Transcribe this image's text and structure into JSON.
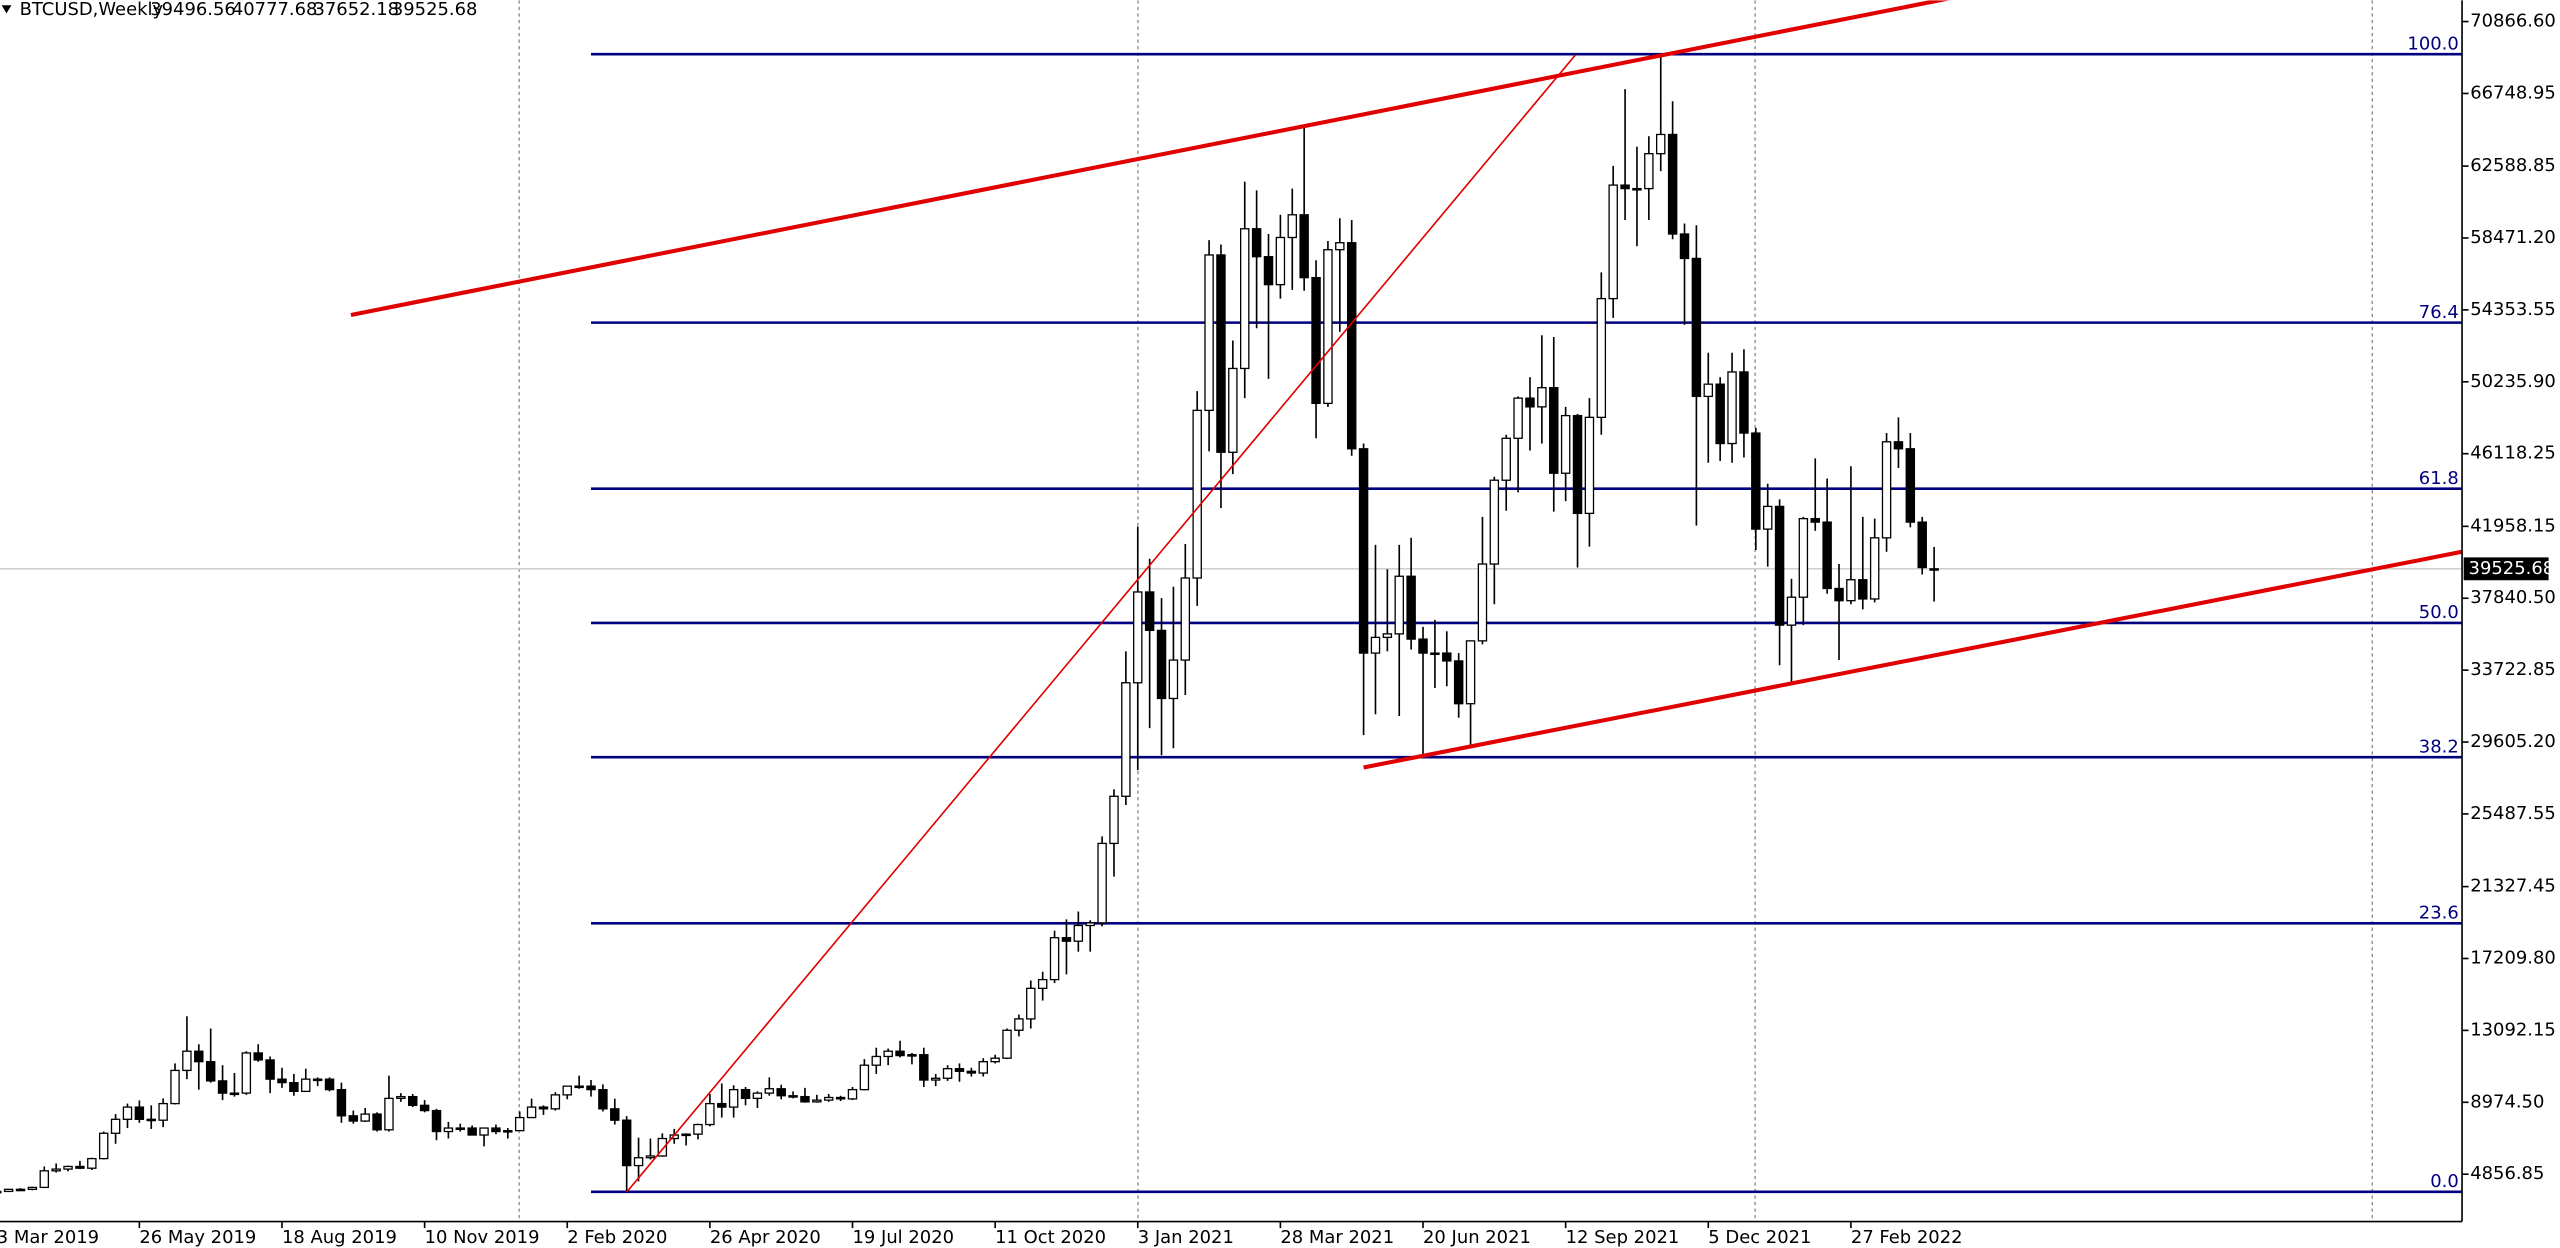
{
  "chart_data": {
    "type": "candlestick",
    "title": "BTCUSD,Weekly",
    "categories": [
      "3 Mar 2019",
      null,
      null,
      null,
      null,
      null,
      null,
      null,
      null,
      null,
      null,
      null,
      "26 May 2019",
      null,
      null,
      null,
      null,
      null,
      null,
      null,
      null,
      null,
      null,
      null,
      "18 Aug 2019",
      null,
      null,
      null,
      null,
      null,
      null,
      null,
      null,
      null,
      null,
      null,
      "10 Nov 2019",
      null,
      null,
      null,
      null,
      null,
      null,
      null,
      null,
      null,
      null,
      null,
      "2 Feb 2020",
      null,
      null,
      null,
      null,
      null,
      null,
      null,
      null,
      null,
      null,
      null,
      "26 Apr 2020",
      null,
      null,
      null,
      null,
      null,
      null,
      null,
      null,
      null,
      null,
      null,
      "19 Jul 2020",
      null,
      null,
      null,
      null,
      null,
      null,
      null,
      null,
      null,
      null,
      null,
      "11 Oct 2020",
      null,
      null,
      null,
      null,
      null,
      null,
      null,
      null,
      null,
      null,
      null,
      "3 Jan 2021",
      null,
      null,
      null,
      null,
      null,
      null,
      null,
      null,
      null,
      null,
      null,
      "28 Mar 2021",
      null,
      null,
      null,
      null,
      null,
      null,
      null,
      null,
      null,
      null,
      null,
      "20 Jun 2021",
      null,
      null,
      null,
      null,
      null,
      null,
      null,
      null,
      null,
      null,
      null,
      "12 Sep 2021",
      null,
      null,
      null,
      null,
      null,
      null,
      null,
      null,
      null,
      null,
      null,
      "5 Dec 2021",
      null,
      null,
      null,
      null,
      null,
      null,
      null,
      null,
      null,
      null,
      null,
      "27 Feb 2022",
      null,
      null,
      null,
      null,
      null,
      null,
      null
    ],
    "ohlc": [
      [
        3820,
        3920,
        3700,
        3870
      ],
      [
        3870,
        4000,
        3840,
        3990
      ],
      [
        3990,
        4060,
        3950,
        3990
      ],
      [
        3990,
        4140,
        3930,
        4100
      ],
      [
        4100,
        5300,
        4080,
        5050
      ],
      [
        5050,
        5470,
        4950,
        5150
      ],
      [
        5150,
        5350,
        5020,
        5300
      ],
      [
        5300,
        5620,
        5150,
        5200
      ],
      [
        5200,
        5800,
        5100,
        5750
      ],
      [
        5750,
        7300,
        5700,
        7200
      ],
      [
        7200,
        8300,
        6600,
        8000
      ],
      [
        8000,
        8900,
        7500,
        8700
      ],
      [
        8700,
        9080,
        7800,
        8000
      ],
      [
        8000,
        8800,
        7450,
        7950
      ],
      [
        7950,
        9200,
        7550,
        8900
      ],
      [
        8900,
        11200,
        8850,
        10800
      ],
      [
        10800,
        13900,
        10300,
        11900
      ],
      [
        11900,
        12300,
        9700,
        11300
      ],
      [
        11300,
        13200,
        10100,
        10200
      ],
      [
        10200,
        11100,
        9100,
        9500
      ],
      [
        9500,
        10650,
        9300,
        9500
      ],
      [
        9500,
        11900,
        9400,
        11800
      ],
      [
        11800,
        12300,
        11300,
        11400
      ],
      [
        11400,
        11600,
        9500,
        10300
      ],
      [
        10300,
        10950,
        9800,
        10100
      ],
      [
        10100,
        10600,
        9350,
        9600
      ],
      [
        9600,
        10900,
        9600,
        10300
      ],
      [
        10300,
        10400,
        9900,
        10300
      ],
      [
        10300,
        10400,
        9600,
        9700
      ],
      [
        9700,
        10100,
        7800,
        8200
      ],
      [
        8200,
        8500,
        7750,
        7900
      ],
      [
        7900,
        8650,
        7850,
        8300
      ],
      [
        8300,
        8400,
        7300,
        7400
      ],
      [
        7400,
        10500,
        7300,
        9200
      ],
      [
        9200,
        9500,
        9000,
        9300
      ],
      [
        9300,
        9450,
        8700,
        8800
      ],
      [
        8800,
        9100,
        8400,
        8500
      ],
      [
        8500,
        8600,
        6800,
        7300
      ],
      [
        7300,
        7850,
        6900,
        7500
      ],
      [
        7500,
        7750,
        7300,
        7500
      ],
      [
        7500,
        7650,
        7100,
        7100
      ],
      [
        7100,
        7500,
        6450,
        7500
      ],
      [
        7500,
        7700,
        7150,
        7300
      ],
      [
        7300,
        7500,
        6900,
        7350
      ],
      [
        7350,
        8450,
        7350,
        8100
      ],
      [
        8100,
        9180,
        8100,
        8700
      ],
      [
        8700,
        8800,
        8250,
        8600
      ],
      [
        8600,
        9550,
        8500,
        9400
      ],
      [
        9400,
        9900,
        9150,
        9900
      ],
      [
        9900,
        10500,
        9750,
        9900
      ],
      [
        9900,
        10250,
        9300,
        9700
      ],
      [
        9700,
        10000,
        8450,
        8600
      ],
      [
        8600,
        9180,
        7700,
        7950
      ],
      [
        7950,
        8180,
        3850,
        5350
      ],
      [
        5350,
        6950,
        4450,
        5800
      ],
      [
        5800,
        6900,
        5700,
        5900
      ],
      [
        5900,
        7200,
        5850,
        6900
      ],
      [
        6900,
        7450,
        6600,
        7100
      ],
      [
        7100,
        7200,
        6500,
        7150
      ],
      [
        7150,
        7750,
        6850,
        7700
      ],
      [
        7700,
        9450,
        7600,
        8900
      ],
      [
        8900,
        10050,
        8100,
        8700
      ],
      [
        8700,
        9950,
        8100,
        9700
      ],
      [
        9700,
        9850,
        8800,
        9200
      ],
      [
        9200,
        9600,
        8650,
        9500
      ],
      [
        9500,
        10400,
        9350,
        9750
      ],
      [
        9750,
        9980,
        9150,
        9350
      ],
      [
        9350,
        9600,
        9200,
        9300
      ],
      [
        9300,
        9800,
        8950,
        9000
      ],
      [
        9000,
        9400,
        8950,
        9100
      ],
      [
        9100,
        9450,
        9000,
        9250
      ],
      [
        9250,
        9350,
        9050,
        9170
      ],
      [
        9170,
        9850,
        9100,
        9700
      ],
      [
        9700,
        11450,
        9650,
        11100
      ],
      [
        11100,
        12100,
        10600,
        11600
      ],
      [
        11600,
        12050,
        11100,
        11900
      ],
      [
        11900,
        12500,
        11550,
        11650
      ],
      [
        11650,
        11800,
        11150,
        11700
      ],
      [
        11700,
        12100,
        9850,
        10250
      ],
      [
        10250,
        10600,
        9900,
        10350
      ],
      [
        10350,
        11100,
        10200,
        10900
      ],
      [
        10900,
        11200,
        10150,
        10750
      ],
      [
        10750,
        10950,
        10450,
        10650
      ],
      [
        10650,
        11500,
        10450,
        11300
      ],
      [
        11300,
        11700,
        11200,
        11500
      ],
      [
        11500,
        13200,
        11450,
        13100
      ],
      [
        13100,
        14000,
        12750,
        13750
      ],
      [
        13750,
        15950,
        13200,
        15500
      ],
      [
        15500,
        16450,
        14800,
        16000
      ],
      [
        16000,
        18800,
        15800,
        18400
      ],
      [
        18400,
        19450,
        16300,
        18200
      ],
      [
        18200,
        19900,
        17600,
        19100
      ],
      [
        19100,
        19400,
        17600,
        19250
      ],
      [
        19250,
        24200,
        19050,
        23800
      ],
      [
        23800,
        26900,
        21900,
        26500
      ],
      [
        26500,
        34800,
        26000,
        33000
      ],
      [
        33000,
        41950,
        28000,
        38200
      ],
      [
        38200,
        40100,
        30400,
        36000
      ],
      [
        36000,
        37850,
        28850,
        32100
      ],
      [
        32100,
        38500,
        29250,
        34300
      ],
      [
        34300,
        40950,
        32300,
        39000
      ],
      [
        39000,
        49700,
        37400,
        48600
      ],
      [
        48600,
        58350,
        46250,
        57500
      ],
      [
        57500,
        58100,
        43000,
        46200
      ],
      [
        46200,
        52600,
        44950,
        51000
      ],
      [
        51000,
        61700,
        49300,
        59000
      ],
      [
        59000,
        61200,
        53300,
        57400
      ],
      [
        57400,
        58700,
        50400,
        55800
      ],
      [
        55800,
        59800,
        55000,
        58500
      ],
      [
        58500,
        61300,
        55500,
        59800
      ],
      [
        59800,
        64850,
        55450,
        56200
      ],
      [
        56200,
        57200,
        47000,
        49000
      ],
      [
        49000,
        58300,
        48800,
        57800
      ],
      [
        57800,
        59600,
        53100,
        58200
      ],
      [
        58200,
        59500,
        46000,
        46400
      ],
      [
        46400,
        46700,
        30000,
        34700
      ],
      [
        34700,
        40900,
        31200,
        35600
      ],
      [
        35600,
        39500,
        34800,
        35800
      ],
      [
        35800,
        40900,
        31100,
        39100
      ],
      [
        39100,
        41300,
        34900,
        35500
      ],
      [
        35500,
        36200,
        28800,
        34700
      ],
      [
        34700,
        36600,
        32700,
        34700
      ],
      [
        34700,
        35950,
        32800,
        34250
      ],
      [
        34250,
        34700,
        31000,
        31800
      ],
      [
        31800,
        35400,
        29300,
        35400
      ],
      [
        35400,
        42500,
        35200,
        39800
      ],
      [
        39800,
        44800,
        37500,
        44600
      ],
      [
        44600,
        47200,
        42850,
        47000
      ],
      [
        47000,
        49400,
        43900,
        49300
      ],
      [
        49300,
        50500,
        46300,
        48800
      ],
      [
        48800,
        52900,
        46700,
        49900
      ],
      [
        49900,
        52800,
        42800,
        45000
      ],
      [
        45000,
        48800,
        43400,
        48300
      ],
      [
        48300,
        48400,
        39600,
        42700
      ],
      [
        42700,
        49300,
        40800,
        48200
      ],
      [
        48200,
        56500,
        47200,
        55000
      ],
      [
        55000,
        62600,
        53900,
        61500
      ],
      [
        61500,
        67000,
        59500,
        61300
      ],
      [
        61300,
        63700,
        58000,
        61300
      ],
      [
        61300,
        64300,
        59500,
        63300
      ],
      [
        63300,
        69000,
        62300,
        64400
      ],
      [
        64400,
        66300,
        58400,
        58700
      ],
      [
        58700,
        59300,
        53500,
        57300
      ],
      [
        57300,
        59200,
        42000,
        49400
      ],
      [
        49400,
        51900,
        45600,
        50100
      ],
      [
        50100,
        50500,
        45700,
        46700
      ],
      [
        46700,
        51900,
        45600,
        50800
      ],
      [
        50800,
        52100,
        45900,
        47300
      ],
      [
        47300,
        47600,
        40600,
        41800
      ],
      [
        41800,
        44400,
        39650,
        43100
      ],
      [
        43100,
        43500,
        34000,
        36300
      ],
      [
        36300,
        38950,
        32900,
        37900
      ],
      [
        37900,
        42500,
        36300,
        42400
      ],
      [
        42400,
        45850,
        41700,
        42200
      ],
      [
        42200,
        44700,
        38100,
        38400
      ],
      [
        38400,
        39800,
        34300,
        37700
      ],
      [
        37700,
        45400,
        37500,
        38900
      ],
      [
        38900,
        42500,
        37200,
        37800
      ],
      [
        37800,
        42400,
        37600,
        41300
      ],
      [
        41300,
        47300,
        40500,
        46800
      ],
      [
        46800,
        48200,
        45300,
        46400
      ],
      [
        46400,
        47300,
        41900,
        42200
      ],
      [
        42200,
        42500,
        39200,
        39600
      ],
      [
        39496.56,
        40777.68,
        37652.18,
        39525.68
      ]
    ],
    "bull_color": "#ffffff",
    "bear_color": "#000000",
    "ylim": [
      2145,
      72082
    ],
    "yticks": [
      4856.85,
      {
        "value": 8974.5,
        "label": "8974.50"
      },
      13092.15,
      {
        "value": 17209.8,
        "label": "17209.80"
      },
      21327.45,
      25487.55,
      {
        "value": 29605.2,
        "label": "29605.20"
      },
      33722.85,
      {
        "value": 37840.5,
        "label": "37840.50"
      },
      41958.15,
      46118.25,
      {
        "value": 50235.9,
        "label": "50235.90"
      },
      54353.55,
      {
        "value": 58471.2,
        "label": "58471.20"
      },
      62588.85,
      66748.95,
      {
        "value": 70866.6,
        "label": "70866.60"
      }
    ],
    "fibonacci": {
      "low": 3850,
      "high": 69000,
      "color": "#000080",
      "levels": [
        {
          "value": 0,
          "label": "0.0"
        },
        23.6,
        38.2,
        {
          "value": 50,
          "label": "50.0"
        },
        61.8,
        76.4,
        {
          "value": 100,
          "label": "100.0"
        }
      ]
    },
    "trendlines": [
      {
        "color": "#e00000",
        "width": 2.5,
        "points": [
          [
            29.8,
            54064
          ],
          [
            165.1,
            72307
          ]
        ]
      },
      {
        "color": "#e00000",
        "width": 1,
        "points": [
          [
            53.0,
            3828
          ],
          [
            132.8,
            68937
          ]
        ]
      },
      {
        "color": "#e00000",
        "width": 2.5,
        "points": [
          [
            115.0,
            28150
          ],
          [
            207.4,
            40500
          ]
        ]
      }
    ]
  }
}
